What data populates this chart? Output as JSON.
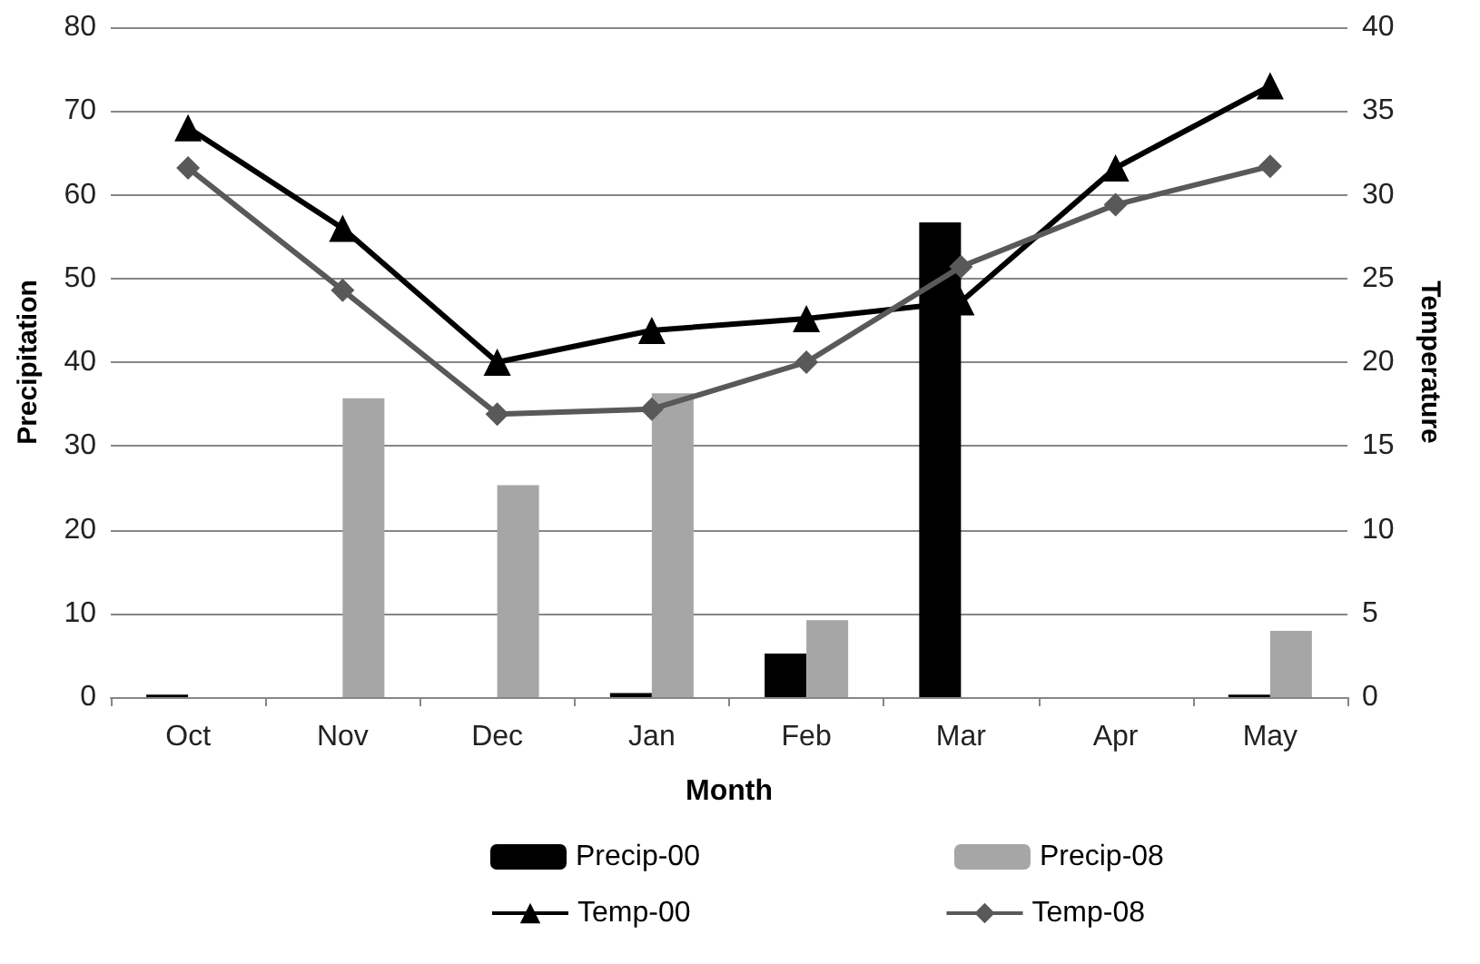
{
  "chart_data": {
    "type": "bar",
    "xlabel": "Month",
    "ylabel": "Precipitation",
    "y2label": "Temperature",
    "categories": [
      "Oct",
      "Nov",
      "Dec",
      "Jan",
      "Feb",
      "Mar",
      "Apr",
      "May"
    ],
    "series": [
      {
        "name": "Precip-00",
        "color": "#000000",
        "values": [
          0.3,
          0,
          0,
          0.5,
          5.2,
          56.7,
          0,
          0.3
        ]
      },
      {
        "name": "Precip-08",
        "color": "#a6a6a6",
        "values": [
          0,
          35.7,
          25.3,
          36.3,
          9.2,
          0,
          0,
          7.9
        ]
      },
      {
        "name": "Temp-00",
        "type": "line",
        "axis": "y2",
        "color": "#000000",
        "marker": "triangle",
        "values": [
          34,
          28,
          20,
          21.9,
          22.6,
          23.6,
          31.6,
          36.5
        ]
      },
      {
        "name": "Temp-08",
        "type": "line",
        "axis": "y2",
        "color": "#595959",
        "marker": "diamond",
        "values": [
          31.6,
          24.3,
          16.9,
          17.2,
          20,
          25.7,
          29.4,
          31.7
        ]
      }
    ],
    "ylim": [
      0,
      80
    ],
    "yticks": [
      0,
      10,
      20,
      30,
      40,
      50,
      60,
      70,
      80
    ],
    "y2lim": [
      0,
      40
    ],
    "y2ticks": [
      0,
      5,
      10,
      15,
      20,
      25,
      30,
      35,
      40
    ],
    "grid": "y",
    "legend": "bottom"
  }
}
